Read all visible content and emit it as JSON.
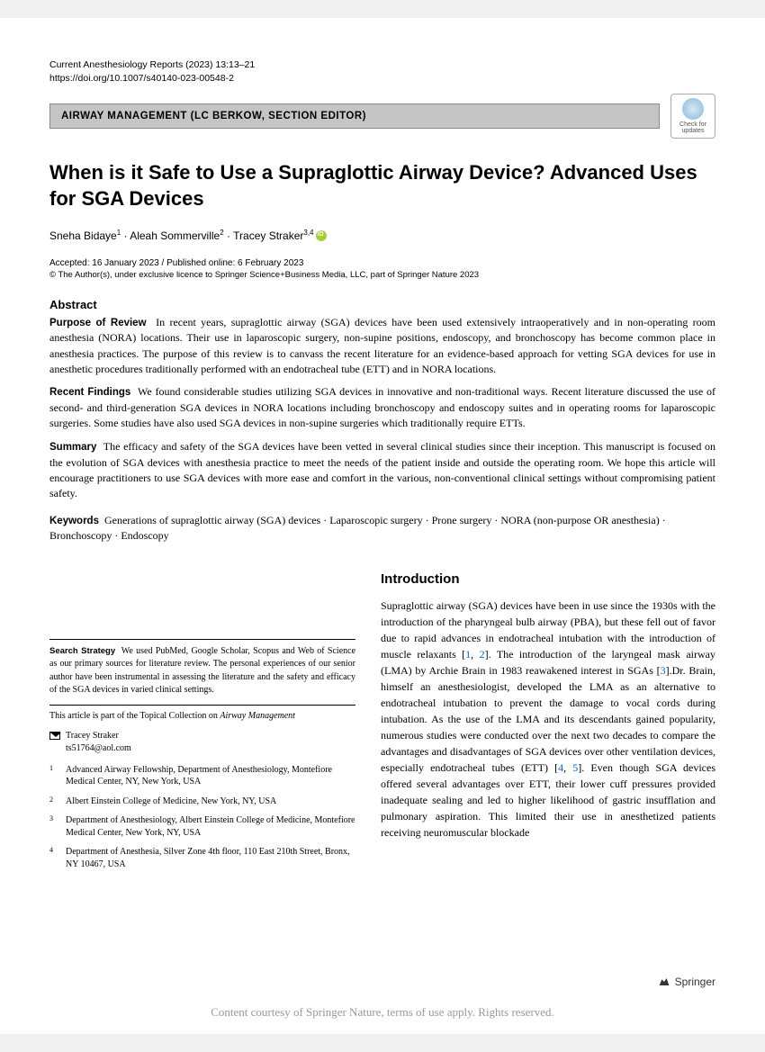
{
  "journal": {
    "citation": "Current Anesthesiology Reports (2023) 13:13–21",
    "doi": "https://doi.org/10.1007/s40140-023-00548-2"
  },
  "section_label": "AIRWAY MANAGEMENT (LC BERKOW, SECTION EDITOR)",
  "check_updates": "Check for updates",
  "title": "When is it Safe to Use a Supraglottic Airway Device? Advanced Uses for SGA Devices",
  "authors_html": "Sneha Bidaye<sup>1</sup> · Aleah Sommerville<sup>2</sup> · Tracey Straker<sup>3,4</sup>",
  "dates": "Accepted: 16 January 2023 / Published online: 6 February 2023",
  "copyright": "© The Author(s), under exclusive licence to Springer Science+Business Media, LLC, part of Springer Nature 2023",
  "abstract": {
    "heading": "Abstract",
    "purpose_label": "Purpose of Review",
    "purpose_text": "In recent years, supraglottic airway (SGA) devices have been used extensively intraoperatively and in non-operating room anesthesia (NORA) locations. Their use in laparoscopic surgery, non-supine positions, endoscopy, and bronchoscopy has become common place in anesthesia practices. The purpose of this review is to canvass the recent literature for an evidence-based approach for vetting SGA devices for use in anesthetic procedures traditionally performed with an endotracheal tube (ETT) and in NORA locations.",
    "findings_label": "Recent Findings",
    "findings_text": "We found considerable studies utilizing SGA devices in innovative and non-traditional ways. Recent literature discussed the use of second- and third-generation SGA devices in NORA locations including bronchoscopy and endoscopy suites and in operating rooms for laparoscopic surgeries. Some studies have also used SGA devices in non-supine surgeries which traditionally require ETTs.",
    "summary_label": "Summary",
    "summary_text": "The efficacy and safety of the SGA devices have been vetted in several clinical studies since their inception. This manuscript is focused on the evolution of SGA devices with anesthesia practice to meet the needs of the patient inside and outside the operating room. We hope this article will encourage practitioners to use SGA devices with more ease and comfort in the various, non-conventional clinical settings without compromising patient safety."
  },
  "keywords": {
    "label": "Keywords",
    "text": "Generations of supraglottic airway (SGA) devices · Laparoscopic surgery · Prone surgery · NORA (non-purpose OR anesthesia) · Bronchoscopy · Endoscopy"
  },
  "search_strategy": {
    "label": "Search Strategy",
    "text": "We used PubMed, Google Scholar, Scopus and Web of Science as our primary sources for literature review. The personal experiences of our senior author have been instrumental in assessing the literature and the safety and efficacy of the SGA devices in varied clinical settings."
  },
  "topical_note": "This article is part of the Topical Collection on ",
  "topical_note_italic": "Airway Management",
  "corresponding": {
    "name": "Tracey Straker",
    "email": "ts51764@aol.com"
  },
  "affiliations": [
    {
      "num": "1",
      "text": "Advanced Airway Fellowship, Department of Anesthesiology, Montefiore Medical Center, NY, New York, USA"
    },
    {
      "num": "2",
      "text": "Albert Einstein College of Medicine, New York, NY, USA"
    },
    {
      "num": "3",
      "text": "Department of Anesthesiology, Albert Einstein College of Medicine, Montefiore Medical Center, New York, NY, USA"
    },
    {
      "num": "4",
      "text": "Department of Anesthesia, Silver Zone 4th floor, 110 East 210th Street, Bronx, NY 10467, USA"
    }
  ],
  "introduction": {
    "heading": "Introduction",
    "body_parts": [
      "Supraglottic airway (SGA) devices have been in use since the 1930s with the introduction of the pharyngeal bulb airway (PBA), but these fell out of favor due to rapid advances in endotracheal intubation with the introduction of muscle relaxants [",
      "1",
      ", ",
      "2",
      "]. The introduction of the laryngeal mask airway (LMA) by Archie Brain in 1983 reawakened interest in SGAs [",
      "3",
      "].Dr. Brain, himself an anesthesiologist, developed the LMA as an alternative to endotracheal intubation to prevent the damage to vocal cords during intubation. As the use of the LMA and its descendants gained popularity, numerous studies were conducted over the next two decades to compare the advantages and disadvantages of SGA devices over other ventilation devices, especially endotracheal tubes (ETT) [",
      "4",
      ", ",
      "5",
      "]. Even though SGA devices offered several advantages over ETT, their lower cuff pressures provided inadequate sealing and led to higher likelihood of gastric insufflation and pulmonary aspiration. This limited their use in anesthetized patients receiving neuromuscular blockade"
    ]
  },
  "footer_brand": "Springer",
  "footer_courtesy": "Content courtesy of Springer Nature, terms of use apply. Rights reserved."
}
